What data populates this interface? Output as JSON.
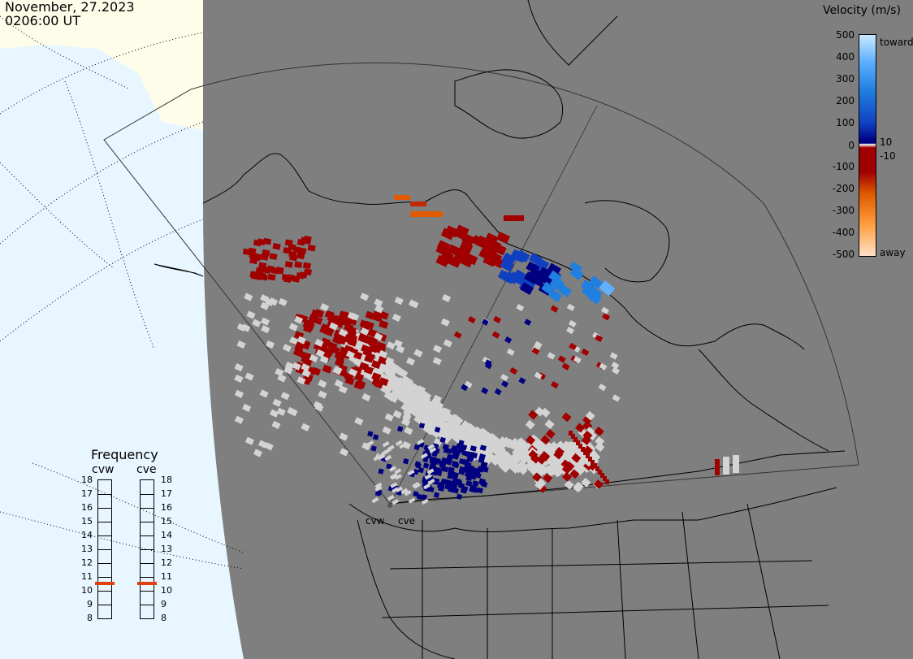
{
  "header": {
    "date": "November, 27.2023",
    "time": "0206:00 UT"
  },
  "legend": {
    "title": "Velocity (m/s)",
    "ticks": [
      "500",
      "400",
      "300",
      "200",
      "100",
      "10",
      "0",
      "-10",
      "-100",
      "-200",
      "-300",
      "-400",
      "-500"
    ],
    "toward_label": "toward",
    "away_label": "away",
    "colors": [
      "#ffe0c8",
      "#ffa040",
      "#e05a00",
      "#a00000",
      "#000080",
      "#1040c0",
      "#2080e0",
      "#60b0ff",
      "#c8eaff"
    ]
  },
  "frequency": {
    "title": "Frequency",
    "radars": [
      {
        "name": "cvw",
        "frequency_mhz": 11
      },
      {
        "name": "cve",
        "frequency_mhz": 11
      }
    ],
    "scale": [
      "18",
      "17",
      "16",
      "15",
      "14",
      "13",
      "12",
      "11",
      "10",
      "9",
      "8"
    ]
  },
  "site_labels": [
    "cvw",
    "cve"
  ],
  "colors": {
    "land_night": "#7f7f7f",
    "ocean_day": "#e8f6ff",
    "land_day": "#fdfdea",
    "no_scatter": "#d3d3d3",
    "marker": "#e04010"
  }
}
